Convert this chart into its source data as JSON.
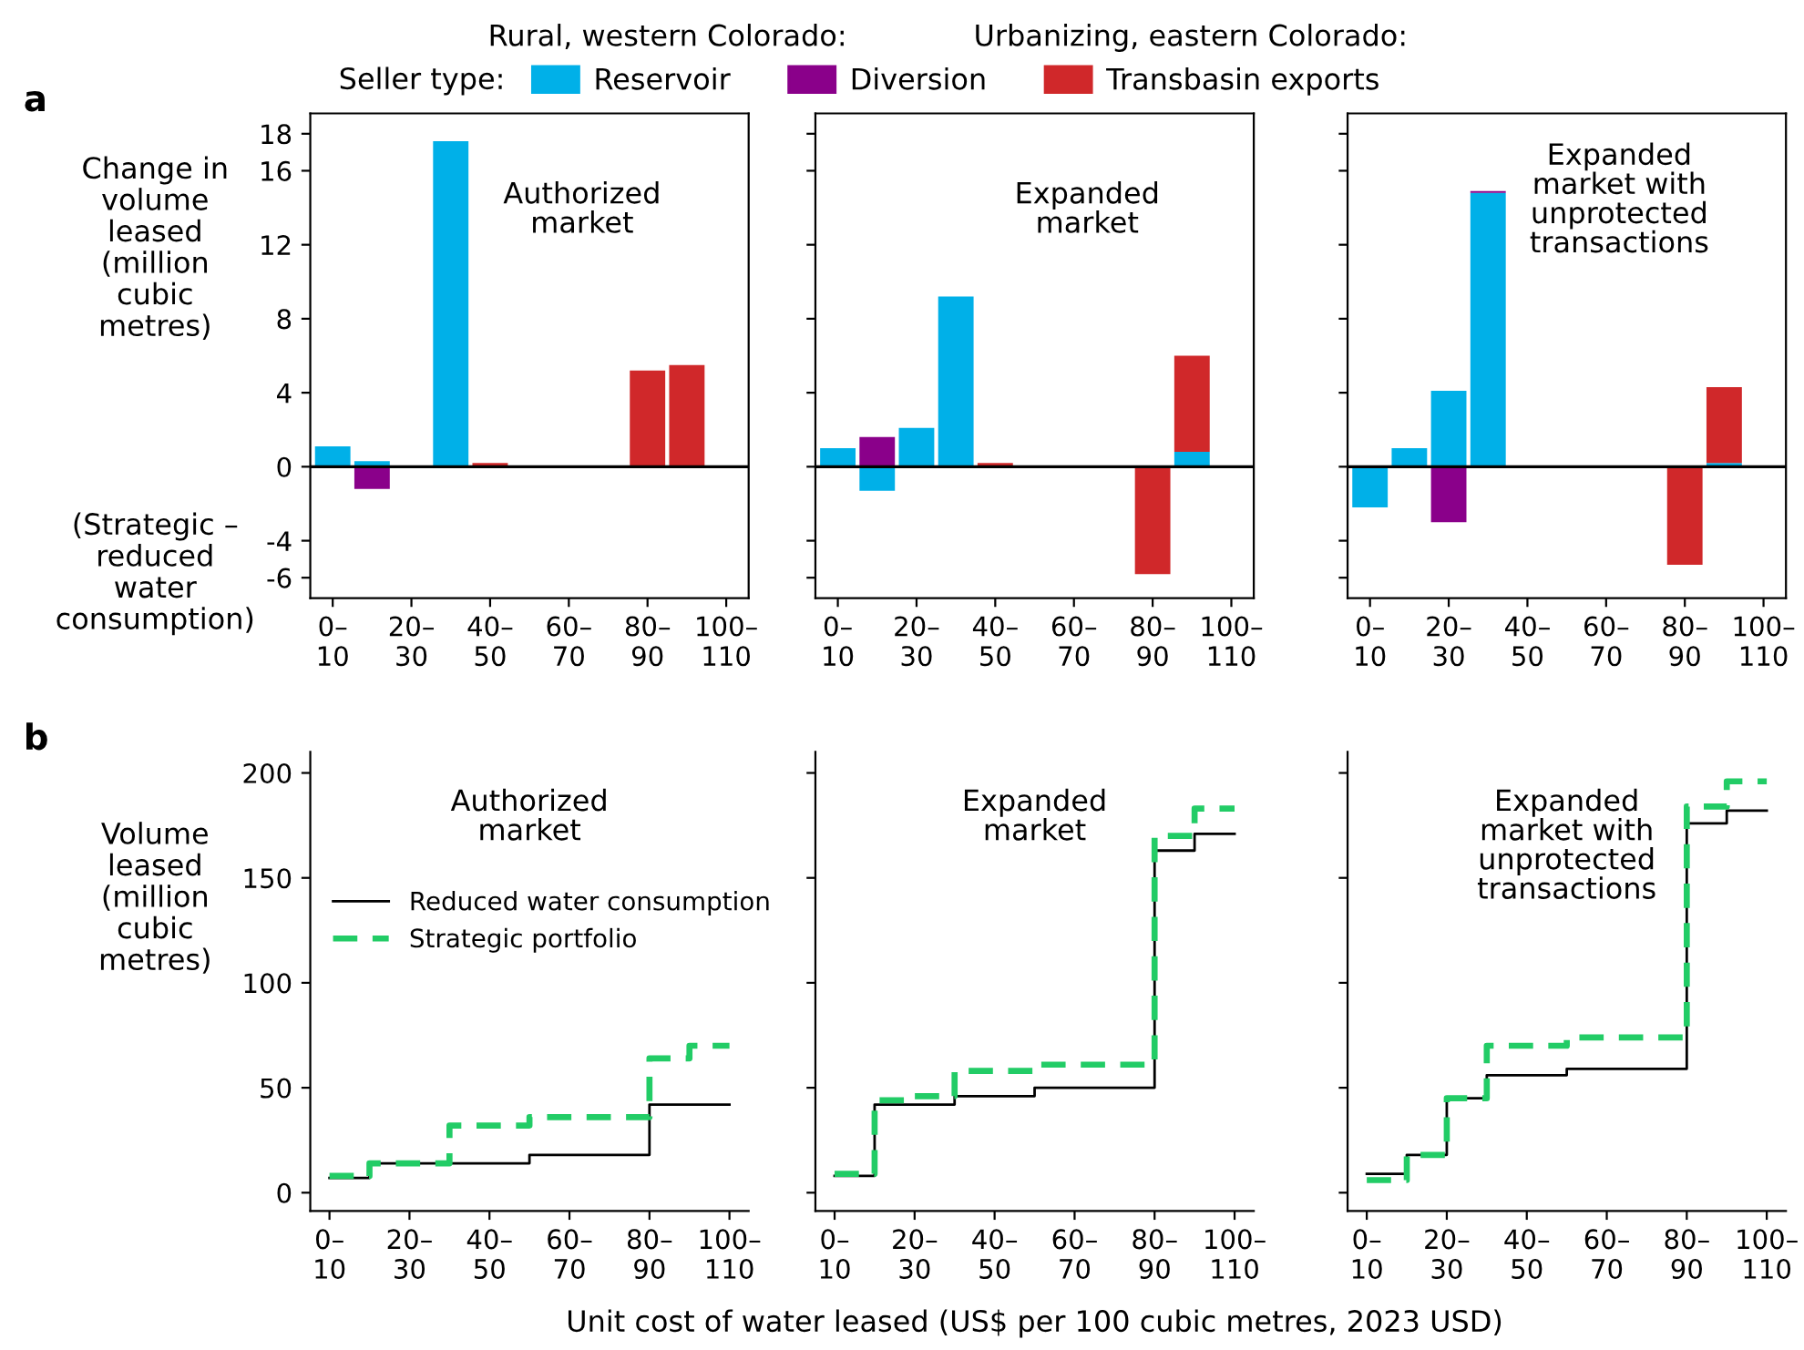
{
  "chart_data": [
    {
      "type": "bar",
      "stacked": true,
      "title": "Authorized\nmarket",
      "ylabel": "Change in\nvolume\nleased\n(million\ncubic\nmetres)",
      "legend": "top",
      "legend_title": "Seller type:",
      "annotations": [
        "a",
        "Rural, western Colorado:",
        "Urbanizing, eastern Colorado:",
        "(Strategic –\nreduced\nwater\nconsumption)"
      ],
      "categories": [
        "0–10",
        null,
        "20–30",
        null,
        "40–50",
        null,
        "60–70",
        null,
        "80–90",
        null,
        "100–110"
      ],
      "series": [
        {
          "name": "Reservoir",
          "color": "#00b0e8",
          "values": [
            1.1,
            0.3,
            null,
            17.6,
            null,
            null,
            null,
            null,
            null,
            null,
            null
          ]
        },
        {
          "name": "Diversion",
          "color": "#8a008a",
          "values": [
            null,
            -1.2,
            null,
            null,
            null,
            null,
            null,
            null,
            null,
            null,
            null
          ]
        },
        {
          "name": "Transbasin exports",
          "color": "#d0282a",
          "values": [
            null,
            null,
            null,
            null,
            0.2,
            null,
            null,
            null,
            5.2,
            5.5,
            null
          ]
        }
      ],
      "ylim": [
        -7.1,
        19.1
      ],
      "yticks": [
        -6,
        -4,
        0,
        4,
        8,
        12,
        16,
        18
      ],
      "ref_lines": [
        {
          "axis": "y",
          "value": 0,
          "color": "#000000"
        }
      ]
    },
    {
      "type": "bar",
      "stacked": true,
      "title": "Expanded\nmarket",
      "tick_labels": "x",
      "categories": [
        "0–10",
        null,
        "20–30",
        null,
        "40–50",
        null,
        "60–70",
        null,
        "80–90",
        null,
        "100–110"
      ],
      "series": [
        {
          "color": "#00b0e8",
          "values": [
            1.0,
            -1.3,
            2.1,
            9.2,
            null,
            null,
            null,
            null,
            null,
            0.8,
            null
          ]
        },
        {
          "color": "#8a008a",
          "values": [
            null,
            1.6,
            null,
            null,
            null,
            null,
            null,
            null,
            null,
            null,
            null
          ]
        },
        {
          "color": "#d0282a",
          "values": [
            null,
            null,
            null,
            null,
            0.2,
            null,
            null,
            null,
            -5.8,
            5.2,
            null
          ]
        }
      ],
      "ylim": [
        -7.1,
        19.1
      ],
      "yticks": [
        -6,
        -4,
        0,
        4,
        8,
        12,
        16,
        18
      ],
      "ref_lines": [
        {
          "axis": "y",
          "value": 0,
          "color": "#000000"
        }
      ]
    },
    {
      "type": "bar",
      "stacked": true,
      "title": "Expanded\nmarket with\nunprotected\ntransactions",
      "tick_labels": "x",
      "categories": [
        "0–10",
        null,
        "20–30",
        null,
        "40–50",
        null,
        "60–70",
        null,
        "80–90",
        null,
        "100–110"
      ],
      "series": [
        {
          "color": "#00b0e8",
          "values": [
            -2.2,
            1.0,
            4.1,
            14.8,
            null,
            null,
            null,
            null,
            null,
            0.2,
            null
          ]
        },
        {
          "color": "#8a008a",
          "values": [
            null,
            null,
            -3.0,
            0.1,
            null,
            null,
            null,
            null,
            null,
            null,
            null
          ]
        },
        {
          "color": "#d0282a",
          "values": [
            null,
            null,
            null,
            null,
            null,
            null,
            null,
            null,
            -5.3,
            4.1,
            null
          ]
        }
      ],
      "ylim": [
        -7.1,
        19.1
      ],
      "yticks": [
        -6,
        -4,
        0,
        4,
        8,
        12,
        16,
        18
      ],
      "ref_lines": [
        {
          "axis": "y",
          "value": 0,
          "color": "#000000"
        }
      ]
    },
    {
      "type": "step",
      "title": "Authorized\nmarket",
      "ylabel": "Volume\nleased\n(million\ncubic\nmetres)",
      "legend": "center left",
      "annotations": [
        "b"
      ],
      "categories": [
        "0–10",
        null,
        "20–30",
        null,
        "40–50",
        null,
        "60–70",
        null,
        "80–90",
        null,
        "100–110"
      ],
      "series": [
        {
          "name": "Reduced water consumption",
          "color": "#000000",
          "line_style": "solid",
          "values": [
            7,
            14,
            14,
            14,
            14,
            18,
            18,
            18,
            42,
            42,
            42
          ]
        },
        {
          "name": "Strategic portfolio",
          "color": "#22cc66",
          "line_style": "dashed",
          "values": [
            8,
            14,
            14,
            32,
            32,
            36,
            36,
            36,
            64,
            70,
            70
          ]
        }
      ],
      "ylim": [
        -8.7,
        210
      ],
      "yticks": [
        0,
        50,
        100,
        150,
        200
      ]
    },
    {
      "type": "step",
      "title": "Expanded\nmarket",
      "xlabel": "Unit cost of water leased (US$ per 100 cubic metres, 2023 USD)",
      "tick_labels": "x",
      "categories": [
        "0–10",
        null,
        "20–30",
        null,
        "40–50",
        null,
        "60–70",
        null,
        "80–90",
        null,
        "100–110"
      ],
      "series": [
        {
          "color": "#000000",
          "line_style": "solid",
          "values": [
            8,
            42,
            42,
            46,
            46,
            50,
            50,
            50,
            163,
            171,
            171
          ]
        },
        {
          "color": "#22cc66",
          "line_style": "dashed",
          "values": [
            9,
            44,
            46,
            58,
            58,
            61,
            61,
            61,
            170,
            183,
            183
          ]
        }
      ],
      "ylim": [
        -8.7,
        210
      ],
      "yticks": [
        0,
        50,
        100,
        150,
        200
      ]
    },
    {
      "type": "step",
      "title": "Expanded\nmarket with\nunprotected\ntransactions",
      "tick_labels": "x",
      "categories": [
        "0–10",
        null,
        "20–30",
        null,
        "40–50",
        null,
        "60–70",
        null,
        "80–90",
        null,
        "100–110"
      ],
      "series": [
        {
          "color": "#000000",
          "line_style": "solid",
          "values": [
            9,
            18,
            45,
            56,
            56,
            59,
            59,
            59,
            176,
            182,
            182
          ]
        },
        {
          "color": "#22cc66",
          "line_style": "dashed",
          "values": [
            6,
            18,
            45,
            70,
            70,
            74,
            74,
            74,
            184,
            196,
            196
          ]
        }
      ],
      "ylim": [
        -8.7,
        210
      ],
      "yticks": [
        0,
        50,
        100,
        150,
        200
      ]
    }
  ]
}
